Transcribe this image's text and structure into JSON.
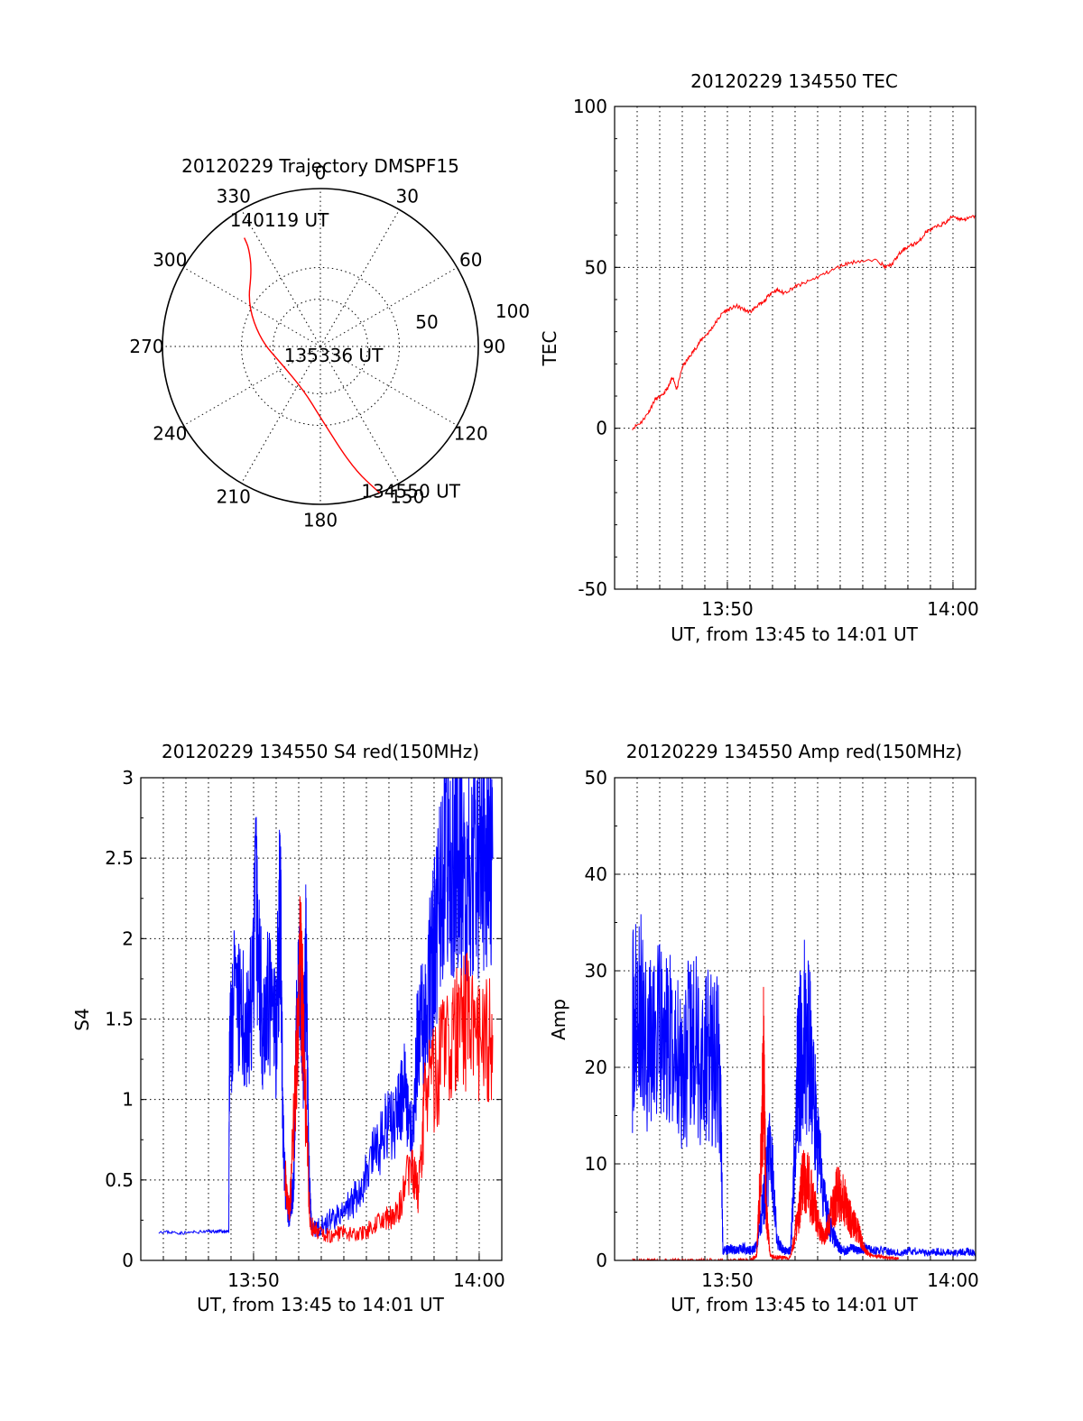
{
  "chart_data": [
    {
      "id": "trajectory",
      "type": "polar",
      "title": "20120229 Trajectory DMSPF15",
      "azimuth_labels": [
        "0",
        "30",
        "60",
        "90",
        "120",
        "150",
        "180",
        "210",
        "240",
        "270",
        "300",
        "330"
      ],
      "radial_labels": [
        "50",
        "100"
      ],
      "zenith_range": [
        0,
        100
      ],
      "grid": true,
      "track": {
        "color": "#ff0000",
        "points": [
          {
            "az": 158,
            "zen": 100
          },
          {
            "az": 165,
            "zen": 80
          },
          {
            "az": 180,
            "zen": 45
          },
          {
            "az": 200,
            "zen": 30
          },
          {
            "az": 246,
            "zen": 27
          },
          {
            "az": 276,
            "zen": 38
          },
          {
            "az": 300,
            "zen": 53
          },
          {
            "az": 318,
            "zen": 65
          },
          {
            "az": 324,
            "zen": 77
          },
          {
            "az": 325,
            "zen": 84
          }
        ]
      },
      "annotations": [
        {
          "text": "140119 UT",
          "az": 342,
          "zen": 84
        },
        {
          "text": "135336 UT",
          "az": 124,
          "zen": 10
        },
        {
          "text": "134550 UT",
          "az": 148,
          "zen": 108
        }
      ]
    },
    {
      "id": "tec",
      "type": "line",
      "title": "20120229 134550 TEC",
      "xlabel": "UT, from 13:45 to 14:01 UT",
      "ylabel": "TEC",
      "xlim": [
        13.75,
        14.0167
      ],
      "ylim": [
        -50,
        100
      ],
      "yticks": [
        "100",
        "50",
        "0",
        "-50"
      ],
      "xticks": [
        {
          "at": 13.8333,
          "label": "13:50"
        },
        {
          "at": 14.0,
          "label": "14:00"
        }
      ],
      "grid": true,
      "series": [
        {
          "color": "#ff0000",
          "x": [
            13.7632,
            13.77,
            13.775,
            13.78,
            13.785,
            13.79,
            13.793,
            13.796,
            13.8,
            13.805,
            13.81,
            13.815,
            13.82,
            13.825,
            13.83,
            13.835,
            13.84,
            13.845,
            13.85,
            13.855,
            13.86,
            13.865,
            13.87,
            13.875,
            13.8833,
            13.89,
            13.9,
            13.91,
            13.92,
            13.93,
            13.945,
            13.95,
            13.955,
            13.96,
            13.965,
            13.97,
            13.975,
            13.98,
            13.985,
            13.99,
            13.995,
            14.0,
            14.005,
            14.01,
            14.0167
          ],
          "y": [
            0,
            2,
            5,
            9,
            10,
            13,
            16,
            12,
            19,
            22,
            25,
            28,
            30,
            33,
            36,
            37,
            38,
            37,
            36,
            38,
            39,
            42,
            43,
            42,
            44,
            45,
            47,
            49,
            51,
            52,
            52,
            50,
            51,
            54,
            56,
            57,
            58,
            61,
            62,
            63,
            64,
            66,
            65,
            65,
            66
          ]
        }
      ]
    },
    {
      "id": "s4",
      "type": "line",
      "title": "20120229 134550 S4 red(150MHz)",
      "xlabel": "UT, from 13:45 to 14:01 UT",
      "ylabel": "S4",
      "xlim": [
        13.75,
        14.0167
      ],
      "ylim": [
        0,
        3
      ],
      "yticks": [
        "3",
        "2.5",
        "2",
        "1.5",
        "1",
        "0.5",
        "0"
      ],
      "xticks": [
        {
          "at": 13.8333,
          "label": "13:50"
        },
        {
          "at": 14.0,
          "label": "14:00"
        }
      ],
      "grid": true,
      "series": [
        {
          "color": "#0000ff",
          "x": [
            13.7632,
            13.78,
            13.8,
            13.81,
            13.815,
            13.8155,
            13.818,
            13.825,
            13.83,
            13.835,
            13.84,
            13.845,
            13.85,
            13.853,
            13.855,
            13.857,
            13.86,
            13.863,
            13.865,
            13.868,
            13.87,
            13.872,
            13.874,
            13.876,
            13.88,
            13.89,
            13.9,
            13.91,
            13.92,
            13.93,
            13.94,
            13.945,
            13.95,
            13.955,
            13.96,
            13.965,
            13.97,
            13.975,
            13.98,
            13.985,
            13.99,
            13.995,
            14.0,
            14.005,
            14.01
          ],
          "y": [
            0.18,
            0.17,
            0.18,
            0.18,
            0.18,
            1.2,
            1.6,
            1.5,
            1.4,
            2.2,
            1.5,
            1.6,
            1.4,
            2.3,
            0.8,
            0.4,
            0.25,
            0.5,
            1.4,
            1.8,
            1.3,
            1.9,
            0.6,
            0.22,
            0.2,
            0.25,
            0.3,
            0.4,
            0.6,
            0.8,
            0.9,
            1.1,
            0.8,
            1.4,
            1.6,
            1.8,
            2.2,
            2.5,
            2.4,
            2.6,
            2.3,
            2.5,
            2.4,
            2.6,
            2.5
          ]
        },
        {
          "color": "#ff0000",
          "x": [
            13.8567,
            13.86,
            13.865,
            13.868,
            13.87,
            13.875,
            13.88,
            13.89,
            13.9,
            13.91,
            13.92,
            13.93,
            13.94,
            13.95,
            13.955,
            13.96,
            13.97,
            13.98,
            13.99,
            14.0,
            14.01
          ],
          "y": [
            0.5,
            0.3,
            1.2,
            1.9,
            1.4,
            0.22,
            0.18,
            0.15,
            0.18,
            0.15,
            0.2,
            0.25,
            0.3,
            0.6,
            0.4,
            1.0,
            1.2,
            1.4,
            1.5,
            1.3,
            1.4
          ]
        }
      ]
    },
    {
      "id": "amp",
      "type": "line",
      "title": "20120229 134550 Amp red(150MHz)",
      "xlabel": "UT, from 13:45 to 14:01 UT",
      "ylabel": "Amp",
      "xlim": [
        13.75,
        14.0167
      ],
      "ylim": [
        0,
        50
      ],
      "yticks": [
        "50",
        "40",
        "30",
        "20",
        "10",
        "0"
      ],
      "xticks": [
        {
          "at": 13.8333,
          "label": "13:50"
        },
        {
          "at": 14.0,
          "label": "14:00"
        }
      ],
      "grid": true,
      "series": [
        {
          "color": "#0000ff",
          "x": [
            13.7632,
            13.77,
            13.78,
            13.79,
            13.8,
            13.81,
            13.82,
            13.828,
            13.83,
            13.835,
            13.84,
            13.845,
            13.85,
            13.855,
            13.86,
            13.865,
            13.87,
            13.875,
            13.88,
            13.885,
            13.89,
            13.895,
            13.9,
            13.905,
            13.91,
            13.915,
            13.92,
            13.925,
            13.93,
            13.935,
            13.94,
            13.95,
            13.96,
            13.97,
            13.98,
            13.99,
            14.0,
            14.01,
            14.0167
          ],
          "y": [
            24,
            25,
            23,
            22,
            21,
            22,
            21,
            20,
            1,
            1.2,
            1,
            1.3,
            1,
            1.4,
            6,
            12,
            2,
            1,
            1,
            18,
            25,
            20,
            12,
            6,
            3,
            1.5,
            1,
            1.2,
            1,
            1.3,
            1,
            1,
            0.8,
            1,
            0.8,
            0.9,
            0.8,
            0.9,
            0.8
          ]
        },
        {
          "color": "#ff0000",
          "x": [
            13.7632,
            13.78,
            13.8,
            13.8283,
            13.85,
            13.855,
            13.858,
            13.86,
            13.862,
            13.865,
            13.87,
            13.88,
            13.886,
            13.89,
            13.895,
            13.9,
            13.905,
            13.91,
            13.915,
            13.92,
            13.925,
            13.93,
            13.935,
            13.94,
            13.95,
            13.96
          ],
          "y": [
            0,
            0,
            0,
            0,
            0,
            0.5,
            10,
            20,
            5,
            0.5,
            0.3,
            0.3,
            5,
            9,
            7,
            4,
            2,
            5,
            7,
            6,
            4,
            3,
            1,
            0.5,
            0.3,
            0.2
          ]
        }
      ]
    }
  ]
}
